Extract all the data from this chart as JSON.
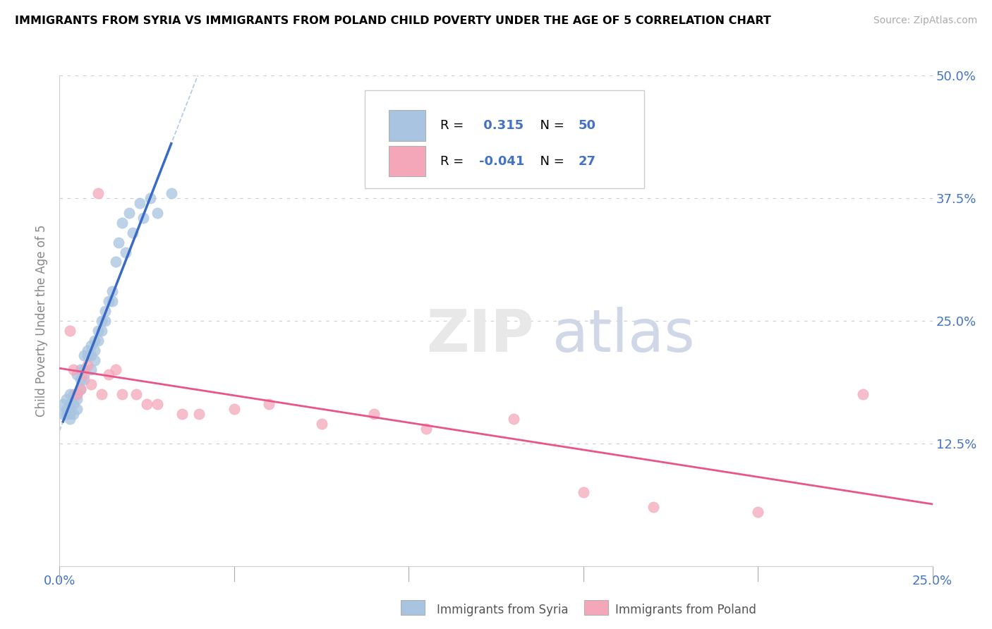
{
  "title": "IMMIGRANTS FROM SYRIA VS IMMIGRANTS FROM POLAND CHILD POVERTY UNDER THE AGE OF 5 CORRELATION CHART",
  "source": "Source: ZipAtlas.com",
  "ylabel": "Child Poverty Under the Age of 5",
  "xlabel_syria": "Immigrants from Syria",
  "xlabel_poland": "Immigrants from Poland",
  "xlim": [
    0.0,
    0.25
  ],
  "ylim": [
    0.0,
    0.5
  ],
  "yticks": [
    0.0,
    0.125,
    0.25,
    0.375,
    0.5
  ],
  "ytick_labels": [
    "",
    "12.5%",
    "25.0%",
    "37.5%",
    "50.0%"
  ],
  "xticks": [
    0.0,
    0.25
  ],
  "xtick_labels": [
    "0.0%",
    "25.0%"
  ],
  "r_syria": 0.315,
  "n_syria": 50,
  "r_poland": -0.041,
  "n_poland": 27,
  "color_syria": "#a8c4e0",
  "color_poland": "#f4a7b9",
  "line_color_syria": "#3a6bc4",
  "line_color_poland": "#e8558a",
  "dashed_line_color": "#a8c4e0",
  "watermark_zip": "ZIP",
  "watermark_atlas": "atlas",
  "syria_x": [
    0.001,
    0.001,
    0.002,
    0.002,
    0.002,
    0.003,
    0.003,
    0.003,
    0.003,
    0.004,
    0.004,
    0.004,
    0.005,
    0.005,
    0.005,
    0.005,
    0.006,
    0.006,
    0.006,
    0.007,
    0.007,
    0.007,
    0.008,
    0.008,
    0.009,
    0.009,
    0.009,
    0.01,
    0.01,
    0.01,
    0.011,
    0.011,
    0.012,
    0.012,
    0.013,
    0.013,
    0.014,
    0.015,
    0.015,
    0.016,
    0.017,
    0.018,
    0.019,
    0.02,
    0.021,
    0.023,
    0.024,
    0.026,
    0.028,
    0.032
  ],
  "syria_y": [
    0.165,
    0.155,
    0.17,
    0.16,
    0.155,
    0.175,
    0.165,
    0.155,
    0.15,
    0.175,
    0.165,
    0.155,
    0.195,
    0.175,
    0.17,
    0.16,
    0.2,
    0.19,
    0.18,
    0.215,
    0.2,
    0.19,
    0.22,
    0.215,
    0.225,
    0.215,
    0.2,
    0.23,
    0.22,
    0.21,
    0.24,
    0.23,
    0.25,
    0.24,
    0.26,
    0.25,
    0.27,
    0.28,
    0.27,
    0.31,
    0.33,
    0.35,
    0.32,
    0.36,
    0.34,
    0.37,
    0.355,
    0.375,
    0.36,
    0.38
  ],
  "poland_x": [
    0.003,
    0.004,
    0.005,
    0.006,
    0.007,
    0.008,
    0.009,
    0.011,
    0.012,
    0.014,
    0.016,
    0.018,
    0.022,
    0.025,
    0.028,
    0.035,
    0.04,
    0.05,
    0.06,
    0.075,
    0.09,
    0.105,
    0.13,
    0.15,
    0.17,
    0.2,
    0.23
  ],
  "poland_y": [
    0.24,
    0.2,
    0.175,
    0.18,
    0.195,
    0.205,
    0.185,
    0.38,
    0.175,
    0.195,
    0.2,
    0.175,
    0.175,
    0.165,
    0.165,
    0.155,
    0.155,
    0.16,
    0.165,
    0.145,
    0.155,
    0.14,
    0.15,
    0.075,
    0.06,
    0.055,
    0.175
  ]
}
